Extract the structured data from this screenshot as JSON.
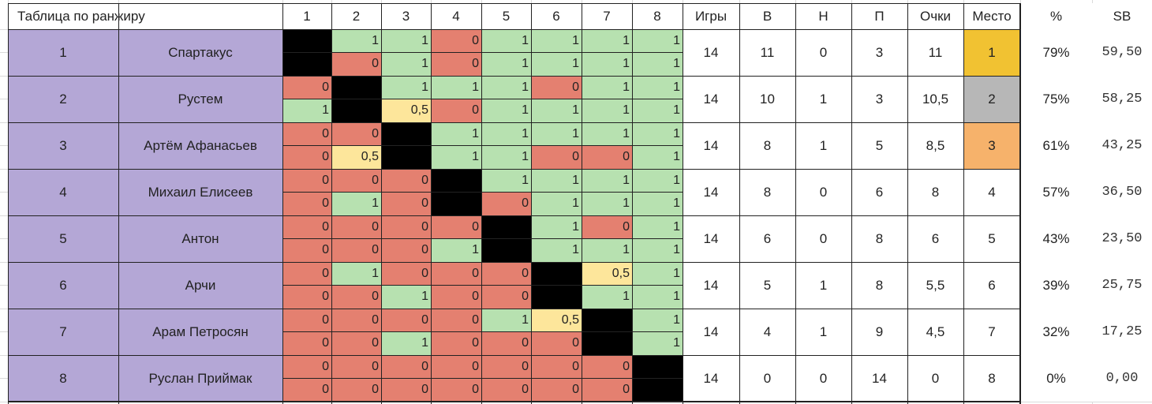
{
  "table": {
    "title": "Таблица по ранжиру",
    "round_headers": [
      "1",
      "2",
      "3",
      "4",
      "5",
      "6",
      "7",
      "8"
    ],
    "stat_headers": {
      "games": "Игры",
      "wins": "В",
      "draws": "Н",
      "losses": "П",
      "points": "Очки",
      "place": "Место",
      "pct": "%",
      "sb": "SB"
    },
    "rows": [
      {
        "rank": "1",
        "name": "Спартакус",
        "top": [
          "X",
          "1",
          "1",
          "0",
          "1",
          "1",
          "1",
          "1"
        ],
        "bottom": [
          "X",
          "0",
          "1",
          "0",
          "1",
          "1",
          "1",
          "1"
        ],
        "games": "14",
        "wins": "11",
        "draws": "0",
        "losses": "3",
        "points": "11",
        "place": "1",
        "pct": "79%",
        "sb": "59,50"
      },
      {
        "rank": "2",
        "name": "Рустем",
        "top": [
          "0",
          "X",
          "1",
          "1",
          "1",
          "0",
          "1",
          "1"
        ],
        "bottom": [
          "1",
          "X",
          "0,5",
          "0",
          "1",
          "1",
          "1",
          "1"
        ],
        "games": "14",
        "wins": "10",
        "draws": "1",
        "losses": "3",
        "points": "10,5",
        "place": "2",
        "pct": "75%",
        "sb": "58,25"
      },
      {
        "rank": "3",
        "name": "Артём Афанасьев",
        "top": [
          "0",
          "0",
          "X",
          "1",
          "1",
          "1",
          "1",
          "1"
        ],
        "bottom": [
          "0",
          "0,5",
          "X",
          "1",
          "1",
          "0",
          "0",
          "1"
        ],
        "games": "14",
        "wins": "8",
        "draws": "1",
        "losses": "5",
        "points": "8,5",
        "place": "3",
        "pct": "61%",
        "sb": "43,25"
      },
      {
        "rank": "4",
        "name": "Михаил Елисеев",
        "top": [
          "0",
          "0",
          "0",
          "X",
          "1",
          "1",
          "1",
          "1"
        ],
        "bottom": [
          "0",
          "1",
          "0",
          "X",
          "0",
          "1",
          "1",
          "1"
        ],
        "games": "14",
        "wins": "8",
        "draws": "0",
        "losses": "6",
        "points": "8",
        "place": "4",
        "pct": "57%",
        "sb": "36,50"
      },
      {
        "rank": "5",
        "name": "Антон",
        "top": [
          "0",
          "0",
          "0",
          "0",
          "X",
          "1",
          "0",
          "1"
        ],
        "bottom": [
          "0",
          "0",
          "0",
          "1",
          "X",
          "1",
          "1",
          "1"
        ],
        "games": "14",
        "wins": "6",
        "draws": "0",
        "losses": "8",
        "points": "6",
        "place": "5",
        "pct": "43%",
        "sb": "23,50"
      },
      {
        "rank": "6",
        "name": "Арчи",
        "top": [
          "0",
          "1",
          "0",
          "0",
          "0",
          "X",
          "0,5",
          "1"
        ],
        "bottom": [
          "0",
          "0",
          "1",
          "0",
          "0",
          "X",
          "1",
          "1"
        ],
        "games": "14",
        "wins": "5",
        "draws": "1",
        "losses": "8",
        "points": "5,5",
        "place": "6",
        "pct": "39%",
        "sb": "25,75"
      },
      {
        "rank": "7",
        "name": "Арам Петросян",
        "top": [
          "0",
          "0",
          "0",
          "0",
          "1",
          "0,5",
          "X",
          "1"
        ],
        "bottom": [
          "0",
          "0",
          "1",
          "0",
          "0",
          "0",
          "X",
          "1"
        ],
        "games": "14",
        "wins": "4",
        "draws": "1",
        "losses": "9",
        "points": "4,5",
        "place": "7",
        "pct": "32%",
        "sb": "17,25"
      },
      {
        "rank": "8",
        "name": "Руслан Приймак",
        "top": [
          "0",
          "0",
          "0",
          "0",
          "0",
          "0",
          "0",
          "X"
        ],
        "bottom": [
          "0",
          "0",
          "0",
          "0",
          "0",
          "0",
          "0",
          "X"
        ],
        "games": "14",
        "wins": "0",
        "draws": "0",
        "losses": "14",
        "points": "0",
        "place": "8",
        "pct": "0%",
        "sb": "0,00"
      }
    ]
  },
  "colors": {
    "win": "#b7e1b0",
    "loss": "#e48070",
    "draw": "#fde69b",
    "self": "#000000",
    "player": "#b4a7d6",
    "gold": "#f1c232",
    "silver": "#b7b7b7",
    "bronze": "#f6b26b"
  }
}
